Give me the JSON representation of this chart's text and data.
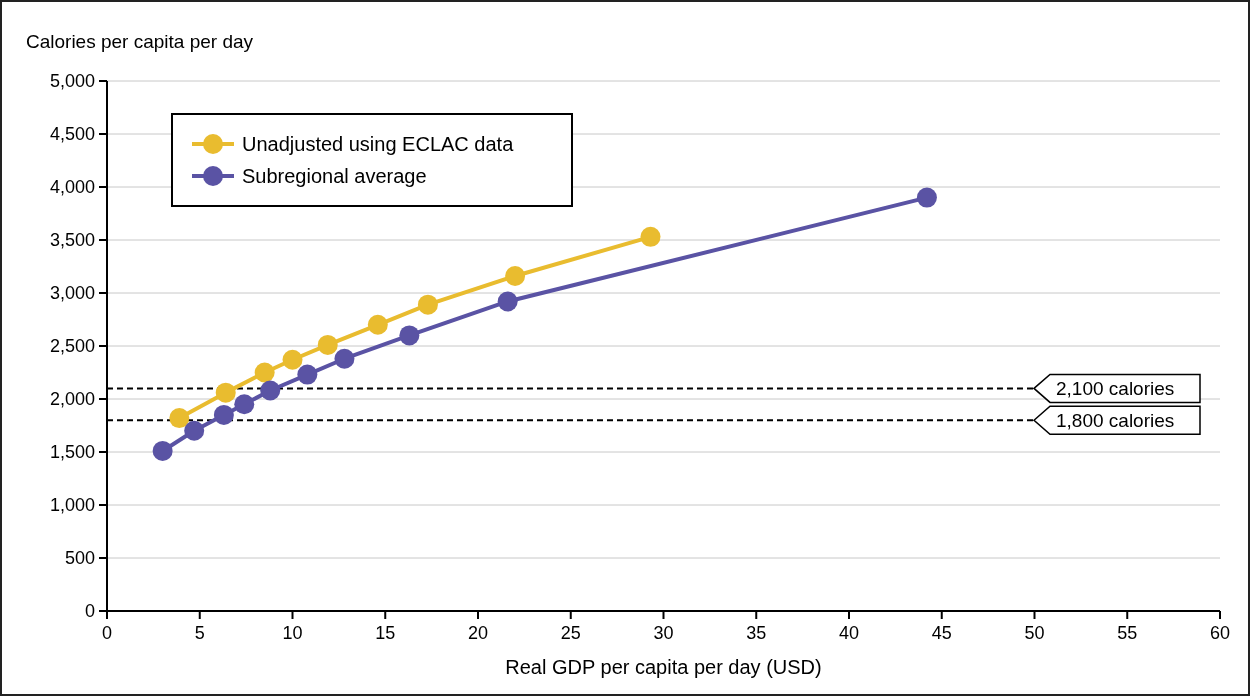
{
  "chart_data": {
    "type": "line",
    "ylabel": "Calories per capita per day",
    "xlabel": "Real GDP per capita per day (USD)",
    "xlim": [
      0,
      60
    ],
    "xticks": [
      0,
      5,
      10,
      15,
      20,
      25,
      30,
      35,
      40,
      45,
      50,
      55,
      60
    ],
    "ylim": [
      0,
      5000
    ],
    "yticks": [
      {
        "value": 0,
        "label": "0"
      },
      {
        "value": 500,
        "label": "500"
      },
      {
        "value": 1000,
        "label": "1,000"
      },
      {
        "value": 1500,
        "label": "1,500"
      },
      {
        "value": 2000,
        "label": "2,000"
      },
      {
        "value": 2500,
        "label": "2,500"
      },
      {
        "value": 3000,
        "label": "3,000"
      },
      {
        "value": 3500,
        "label": "3,500"
      },
      {
        "value": 4000,
        "label": "4,000"
      },
      {
        "value": 4500,
        "label": "4,500"
      },
      {
        "value": 5000,
        "label": "5,000"
      }
    ],
    "grid": "y",
    "legend": "top left",
    "marker": "circle",
    "line_style": "solid",
    "series": [
      {
        "name": "Unadjusted using ECLAC data",
        "color": "#e9bc2f",
        "x": [
          3.9,
          6.4,
          8.5,
          10.0,
          11.9,
          14.6,
          17.3,
          22.0,
          29.3
        ],
        "values": [
          1820,
          2060,
          2250,
          2370,
          2510,
          2700,
          2890,
          3160,
          3530
        ]
      },
      {
        "name": "Subregional average",
        "color": "#5a53a4",
        "x": [
          3.0,
          4.7,
          6.3,
          7.4,
          8.8,
          10.8,
          12.8,
          16.3,
          21.6,
          44.2
        ],
        "values": [
          1510,
          1700,
          1850,
          1950,
          2080,
          2230,
          2380,
          2600,
          2920,
          3900
        ]
      }
    ],
    "ref_lines": [
      {
        "axis": "y",
        "value": 2100,
        "label": "2,100 calories",
        "line_style": "dashed",
        "color": "#000000"
      },
      {
        "axis": "y",
        "value": 1800,
        "label": "1,800 calories",
        "line_style": "dashed",
        "color": "#000000"
      }
    ]
  }
}
